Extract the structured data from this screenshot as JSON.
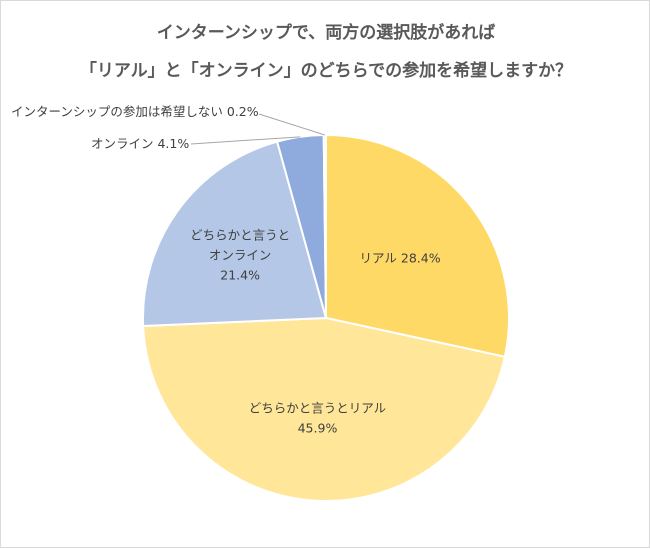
{
  "chart_data": {
    "type": "pie",
    "title_lines": [
      "インターンシップで、両方の選択肢があれば",
      "「リアル」と「オンライン」のどちらでの参加を希望しますか？"
    ],
    "start_angle": "top",
    "direction": "clockwise",
    "legend": "none",
    "slices": [
      {
        "label": "リアル",
        "value": 28.4,
        "value_text": "28.4%",
        "color": "#FFD966",
        "text_lines": [
          "リアル 28.4%"
        ],
        "inside": true
      },
      {
        "label": "どちらかと言うとリアル",
        "value": 45.9,
        "value_text": "45.9%",
        "color": "#FFE699",
        "text_lines": [
          "どちらかと言うとリアル",
          "45.9%"
        ],
        "inside": true
      },
      {
        "label": "どちらかと言うとオンライン",
        "value": 21.4,
        "value_text": "21.4%",
        "color": "#B4C7E7",
        "text_lines": [
          "どちらかと言うと",
          "オンライン",
          "21.4%"
        ],
        "inside": true
      },
      {
        "label": "オンライン",
        "value": 4.1,
        "value_text": "4.1%",
        "color": "#8FAADC",
        "text_lines": [
          "オンライン 4.1%"
        ],
        "inside": false
      },
      {
        "label": "インターンシップの参加は希望しない",
        "value": 0.2,
        "value_text": "0.2%",
        "color": "#DAE3F3",
        "text_lines": [
          "インターンシップの参加は希望しない 0.2%"
        ],
        "inside": false
      }
    ]
  }
}
